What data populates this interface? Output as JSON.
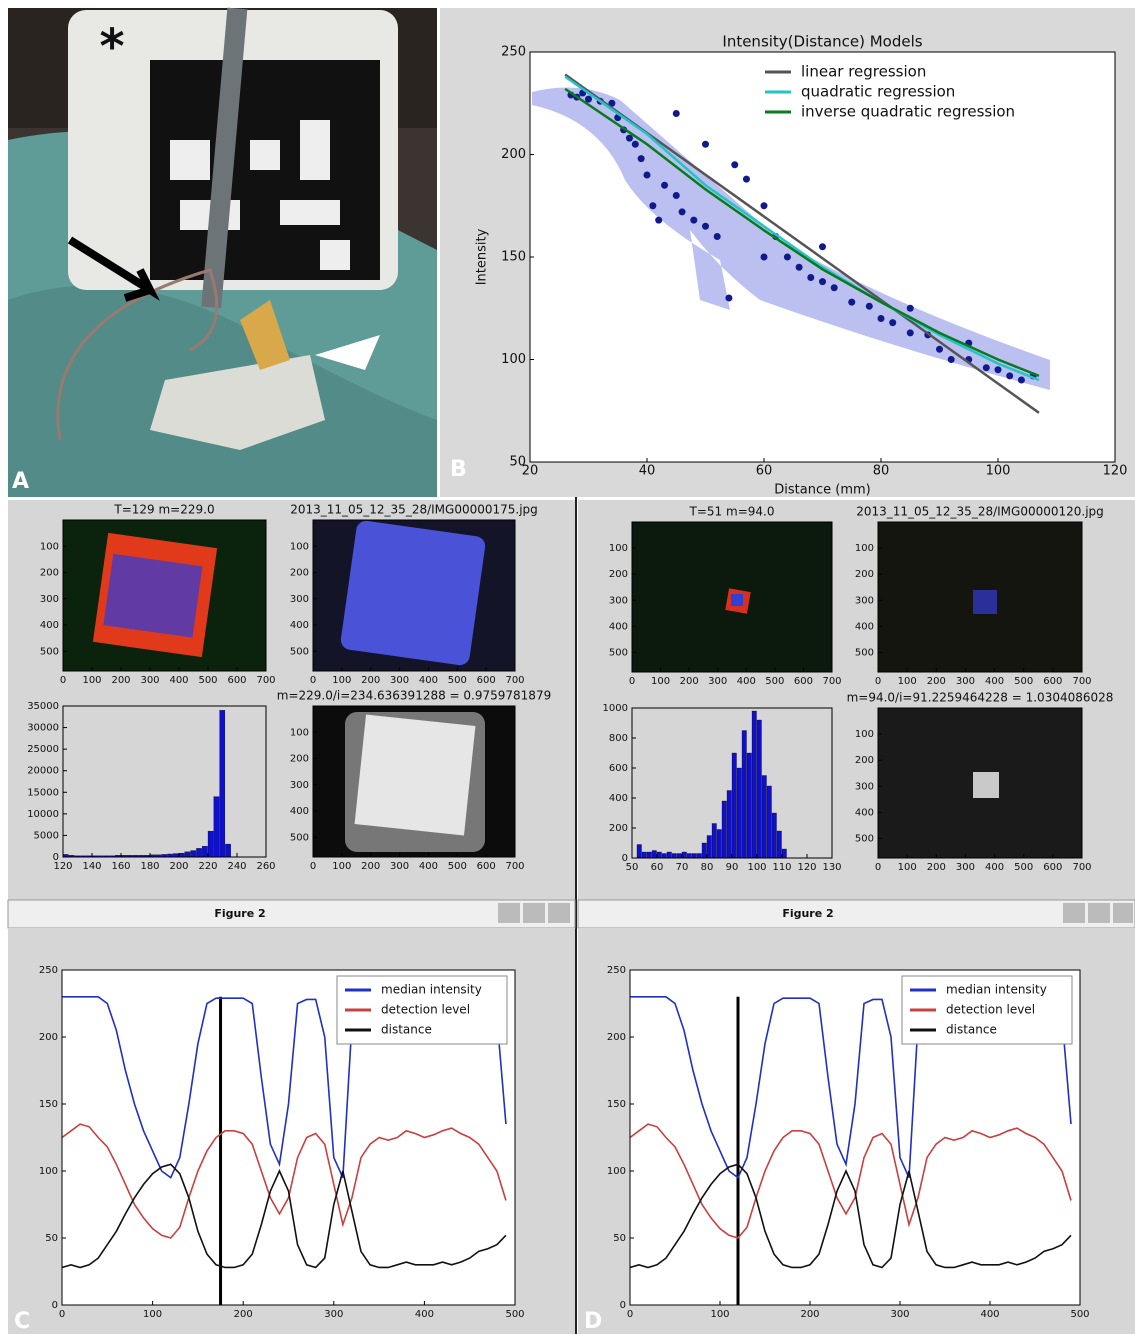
{
  "panels": [
    "A",
    "B",
    "C",
    "D"
  ],
  "photo": {
    "marker": "*"
  },
  "windows": [
    "Figure 2",
    "Figure 2"
  ],
  "chart_data": [
    {
      "type": "line",
      "title": "Intensity(Distance) Models",
      "x_label": "Distance (mm)",
      "y_label": "Intensity",
      "xlim": [
        20,
        120
      ],
      "ylim": [
        50,
        250
      ],
      "xticks": [
        20,
        40,
        60,
        80,
        100,
        120
      ],
      "yticks": [
        50,
        100,
        150,
        200,
        250
      ],
      "legend": "upper right",
      "series": [
        {
          "color": "#101a8c",
          "markers": true,
          "x": [
            27,
            28,
            29,
            30,
            32,
            34,
            35,
            36,
            37,
            38,
            39,
            40,
            41,
            42,
            43,
            45,
            46,
            48,
            50,
            52,
            54,
            55,
            57,
            60,
            62,
            64,
            66,
            68,
            70,
            72,
            75,
            78,
            80,
            82,
            85,
            88,
            90,
            92,
            95,
            98,
            100,
            102,
            104,
            106,
            50,
            45,
            60,
            70,
            85,
            95
          ],
          "values": [
            229,
            228,
            230,
            227,
            226,
            225,
            218,
            212,
            208,
            205,
            198,
            190,
            175,
            168,
            185,
            180,
            172,
            168,
            165,
            160,
            130,
            195,
            188,
            175,
            160,
            150,
            145,
            140,
            138,
            135,
            128,
            126,
            120,
            118,
            113,
            112,
            105,
            100,
            100,
            96,
            95,
            92,
            90,
            92,
            205,
            220,
            150,
            155,
            125,
            108
          ]
        },
        {
          "name": "linear regression",
          "color": "#555555",
          "x": [
            26,
            107
          ],
          "values": [
            239,
            74
          ]
        },
        {
          "name": "quadratic regression",
          "color": "#22c4c4",
          "x": [
            26,
            40,
            50,
            60,
            70,
            80,
            90,
            100,
            107
          ],
          "values": [
            238,
            210,
            185,
            165,
            145,
            128,
            112,
            98,
            90
          ]
        },
        {
          "name": "inverse quadratic regression",
          "color": "#0a7a1e",
          "x": [
            26,
            40,
            50,
            60,
            70,
            80,
            90,
            100,
            107
          ],
          "values": [
            232,
            205,
            183,
            163,
            144,
            128,
            113,
            100,
            92
          ]
        }
      ]
    },
    {
      "type": "image",
      "title": "T=129 m=229.0",
      "xlim": [
        0,
        700
      ],
      "ylim": [
        575,
        0
      ],
      "xticks": [
        0,
        100,
        200,
        300,
        400,
        500,
        600,
        700
      ],
      "yticks": [
        100,
        200,
        300,
        400,
        500
      ]
    },
    {
      "type": "image",
      "title": "2013_11_05_12_35_28/IMG00000175.jpg",
      "xlim": [
        0,
        700
      ],
      "ylim": [
        575,
        0
      ],
      "xticks": [
        0,
        100,
        200,
        300,
        400,
        500,
        600,
        700
      ],
      "yticks": [
        100,
        200,
        300,
        400,
        500
      ]
    },
    {
      "type": "image",
      "title": "m=229.0/i=234.636391288 = 0.9759781879",
      "xlim": [
        0,
        700
      ],
      "ylim": [
        575,
        0
      ],
      "xticks": [
        0,
        100,
        200,
        300,
        400,
        500,
        600,
        700
      ],
      "yticks": [
        100,
        200,
        300,
        400,
        500
      ]
    },
    {
      "type": "histogram",
      "color": "#1010c8",
      "xlim": [
        120,
        260
      ],
      "ylim": [
        0,
        35000
      ],
      "xticks": [
        120,
        140,
        160,
        180,
        200,
        220,
        240,
        260
      ],
      "yticks": [
        0,
        5000,
        10000,
        15000,
        20000,
        25000,
        30000,
        35000
      ],
      "bins": [
        120,
        124,
        128,
        132,
        136,
        140,
        144,
        148,
        152,
        156,
        160,
        164,
        168,
        172,
        176,
        180,
        184,
        188,
        192,
        196,
        200,
        204,
        208,
        212,
        216,
        220,
        224,
        228,
        232,
        236,
        240,
        244
      ],
      "values": [
        600,
        400,
        300,
        300,
        300,
        300,
        300,
        300,
        300,
        400,
        400,
        400,
        400,
        400,
        400,
        500,
        500,
        600,
        700,
        800,
        900,
        1200,
        1500,
        2000,
        2500,
        6000,
        14000,
        34000,
        3000,
        0,
        0
      ]
    },
    {
      "type": "line",
      "xlim": [
        0,
        500
      ],
      "ylim": [
        0,
        250
      ],
      "xticks": [
        0,
        100,
        200,
        300,
        400,
        500
      ],
      "yticks": [
        0,
        50,
        100,
        150,
        200,
        250
      ],
      "legend": "upper right",
      "vline": 175,
      "x": [
        0,
        10,
        20,
        30,
        40,
        50,
        60,
        70,
        80,
        90,
        100,
        110,
        120,
        130,
        140,
        150,
        160,
        170,
        180,
        190,
        200,
        210,
        220,
        230,
        240,
        250,
        260,
        270,
        280,
        290,
        300,
        310,
        320,
        330,
        340,
        350,
        360,
        370,
        380,
        390,
        400,
        410,
        420,
        430,
        440,
        450,
        460,
        470,
        480,
        490
      ],
      "series": [
        {
          "name": "median intensity",
          "color": "#2030c0",
          "values": [
            230,
            230,
            230,
            230,
            230,
            225,
            205,
            175,
            150,
            130,
            115,
            100,
            95,
            110,
            150,
            195,
            225,
            229,
            229,
            229,
            229,
            225,
            170,
            120,
            105,
            150,
            225,
            228,
            228,
            200,
            110,
            95,
            210,
            null,
            null,
            null,
            null,
            null,
            null,
            null,
            null,
            null,
            null,
            null,
            null,
            null,
            null,
            null,
            215,
            135
          ]
        },
        {
          "name": "detection level",
          "color": "#c84040",
          "values": [
            125,
            130,
            135,
            133,
            125,
            118,
            105,
            90,
            75,
            65,
            57,
            52,
            50,
            58,
            80,
            100,
            115,
            125,
            130,
            130,
            128,
            120,
            100,
            80,
            68,
            80,
            110,
            125,
            128,
            120,
            90,
            60,
            80,
            110,
            120,
            125,
            123,
            125,
            130,
            128,
            125,
            127,
            130,
            132,
            128,
            125,
            120,
            110,
            100,
            78
          ]
        },
        {
          "name": "distance",
          "color": "#111111",
          "values": [
            28,
            30,
            28,
            30,
            35,
            45,
            55,
            68,
            80,
            90,
            98,
            103,
            105,
            98,
            80,
            55,
            38,
            30,
            28,
            28,
            30,
            38,
            60,
            85,
            100,
            85,
            45,
            30,
            28,
            35,
            75,
            100,
            70,
            40,
            30,
            28,
            28,
            30,
            32,
            30,
            30,
            30,
            32,
            30,
            32,
            35,
            40,
            42,
            45,
            52
          ]
        }
      ]
    },
    {
      "type": "image",
      "title": "T=51 m=94.0",
      "xlim": [
        0,
        700
      ],
      "ylim": [
        575,
        0
      ],
      "xticks": [
        0,
        100,
        200,
        300,
        400,
        500,
        600,
        700
      ],
      "yticks": [
        100,
        200,
        300,
        400,
        500
      ]
    },
    {
      "type": "image",
      "title": "2013_11_05_12_35_28/IMG00000120.jpg",
      "xlim": [
        0,
        700
      ],
      "ylim": [
        575,
        0
      ],
      "xticks": [
        0,
        100,
        200,
        300,
        400,
        500,
        600,
        700
      ],
      "yticks": [
        100,
        200,
        300,
        400,
        500
      ]
    },
    {
      "type": "image",
      "title": "m=94.0/i=91.2259464228 = 1.0304086028",
      "xlim": [
        0,
        700
      ],
      "ylim": [
        575,
        0
      ],
      "xticks": [
        0,
        100,
        200,
        300,
        400,
        500,
        600,
        700
      ],
      "yticks": [
        100,
        200,
        300,
        400,
        500
      ]
    },
    {
      "type": "histogram",
      "color": "#1010c8",
      "xlim": [
        50,
        130
      ],
      "ylim": [
        0,
        1000
      ],
      "xticks": [
        50,
        60,
        70,
        80,
        90,
        100,
        110,
        120,
        130
      ],
      "yticks": [
        0,
        200,
        400,
        600,
        800,
        1000
      ],
      "bins": [
        52,
        54,
        56,
        58,
        60,
        62,
        64,
        66,
        68,
        70,
        72,
        74,
        76,
        78,
        80,
        82,
        84,
        86,
        88,
        90,
        92,
        94,
        96,
        98,
        100,
        102,
        104,
        106,
        108,
        110,
        112
      ],
      "values": [
        90,
        40,
        40,
        50,
        40,
        30,
        40,
        30,
        30,
        40,
        30,
        30,
        30,
        100,
        150,
        230,
        190,
        380,
        450,
        700,
        600,
        850,
        700,
        980,
        920,
        550,
        480,
        300,
        180,
        60
      ]
    },
    {
      "type": "line",
      "xlim": [
        0,
        500
      ],
      "ylim": [
        0,
        250
      ],
      "xticks": [
        0,
        100,
        200,
        300,
        400,
        500
      ],
      "yticks": [
        0,
        50,
        100,
        150,
        200,
        250
      ],
      "legend": "upper right",
      "vline": 120,
      "x": [
        0,
        10,
        20,
        30,
        40,
        50,
        60,
        70,
        80,
        90,
        100,
        110,
        120,
        130,
        140,
        150,
        160,
        170,
        180,
        190,
        200,
        210,
        220,
        230,
        240,
        250,
        260,
        270,
        280,
        290,
        300,
        310,
        320,
        330,
        340,
        350,
        360,
        370,
        380,
        390,
        400,
        410,
        420,
        430,
        440,
        450,
        460,
        470,
        480,
        490
      ],
      "series": [
        {
          "name": "median intensity",
          "color": "#2030c0",
          "values": [
            230,
            230,
            230,
            230,
            230,
            225,
            205,
            175,
            150,
            130,
            115,
            100,
            95,
            110,
            150,
            195,
            225,
            229,
            229,
            229,
            229,
            225,
            170,
            120,
            105,
            150,
            225,
            228,
            228,
            200,
            110,
            95,
            210,
            null,
            null,
            null,
            null,
            null,
            null,
            null,
            null,
            null,
            null,
            null,
            null,
            null,
            null,
            null,
            215,
            135
          ]
        },
        {
          "name": "detection level",
          "color": "#c84040",
          "values": [
            125,
            130,
            135,
            133,
            125,
            118,
            105,
            90,
            75,
            65,
            57,
            52,
            50,
            58,
            80,
            100,
            115,
            125,
            130,
            130,
            128,
            120,
            100,
            80,
            68,
            80,
            110,
            125,
            128,
            120,
            90,
            60,
            80,
            110,
            120,
            125,
            123,
            125,
            130,
            128,
            125,
            127,
            130,
            132,
            128,
            125,
            120,
            110,
            100,
            78
          ]
        },
        {
          "name": "distance",
          "color": "#111111",
          "values": [
            28,
            30,
            28,
            30,
            35,
            45,
            55,
            68,
            80,
            90,
            98,
            103,
            105,
            98,
            80,
            55,
            38,
            30,
            28,
            28,
            30,
            38,
            60,
            85,
            100,
            85,
            45,
            30,
            28,
            35,
            75,
            100,
            70,
            40,
            30,
            28,
            28,
            30,
            32,
            30,
            30,
            30,
            32,
            30,
            32,
            35,
            40,
            42,
            45,
            52
          ]
        }
      ]
    }
  ]
}
